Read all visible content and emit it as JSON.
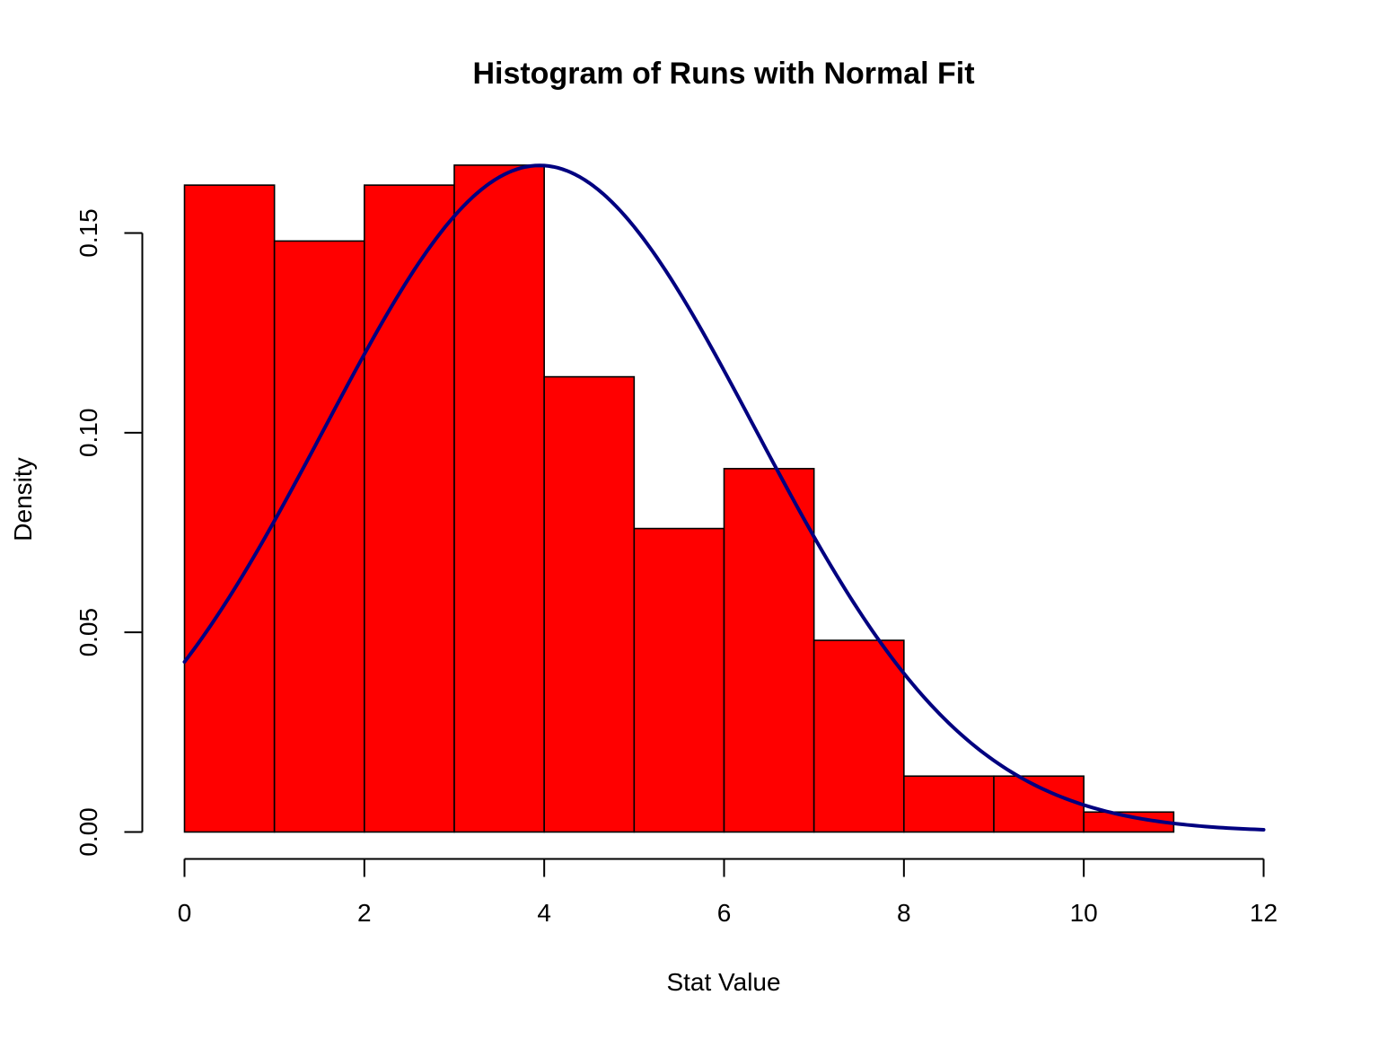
{
  "chart_data": {
    "type": "bar",
    "title": "Histogram of Runs with Normal Fit",
    "xlabel": "Stat Value",
    "ylabel": "Density",
    "xlim": [
      0,
      12
    ],
    "ylim": [
      0,
      0.167
    ],
    "x_ticks": [
      "0",
      "2",
      "4",
      "6",
      "8",
      "10",
      "12"
    ],
    "y_ticks": [
      "0.00",
      "0.05",
      "0.10",
      "0.15"
    ],
    "grid": false,
    "bins": [
      {
        "from": 0,
        "to": 1,
        "density": 0.162
      },
      {
        "from": 1,
        "to": 2,
        "density": 0.148
      },
      {
        "from": 2,
        "to": 3,
        "density": 0.162
      },
      {
        "from": 3,
        "to": 4,
        "density": 0.167
      },
      {
        "from": 4,
        "to": 5,
        "density": 0.114
      },
      {
        "from": 5,
        "to": 6,
        "density": 0.076
      },
      {
        "from": 6,
        "to": 7,
        "density": 0.091
      },
      {
        "from": 7,
        "to": 8,
        "density": 0.048
      },
      {
        "from": 8,
        "to": 9,
        "density": 0.014
      },
      {
        "from": 9,
        "to": 10,
        "density": 0.014
      },
      {
        "from": 10,
        "to": 11,
        "density": 0.005
      }
    ],
    "normal_fit": {
      "mean": 3.95,
      "sd": 2.39,
      "x_from": 0,
      "x_to": 12
    },
    "colors": {
      "bars": "#FF0000",
      "bar_border": "#000000",
      "curve": "#000080"
    }
  }
}
